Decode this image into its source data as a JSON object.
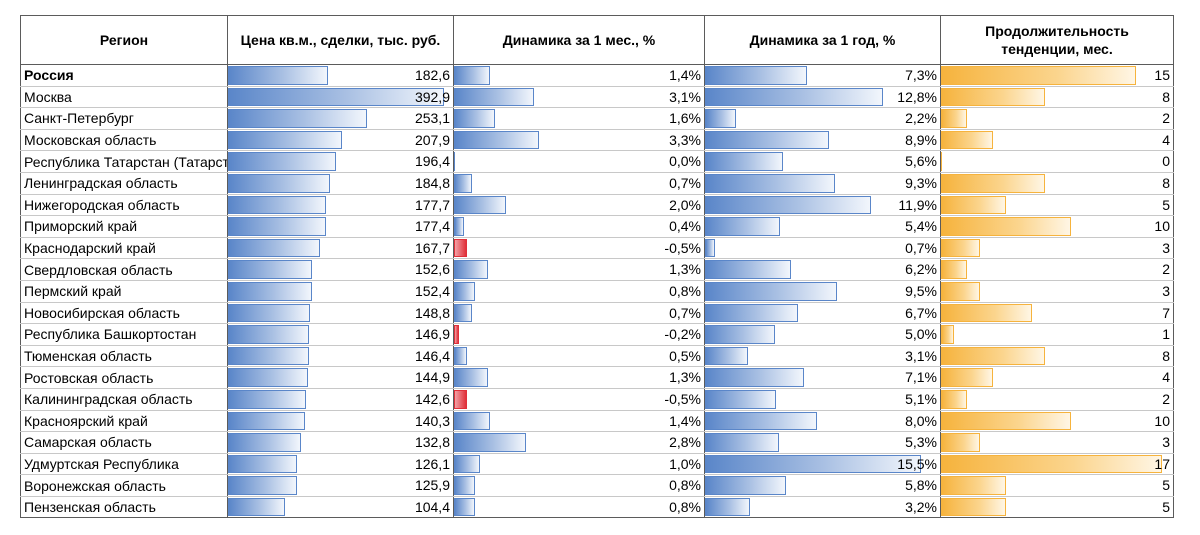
{
  "chart_data": {
    "type": "table",
    "columns": [
      "Регион",
      "Цена кв.м., сделки, тыс. руб.",
      "Динамика за 1 мес., %",
      "Динамика за 1 год, %",
      "Продолжительность тенденции, мес."
    ],
    "rows": [
      {
        "region": "Россия",
        "price": "182,6",
        "m1": "1,4%",
        "y1": "7,3%",
        "dur": "15",
        "bold": true
      },
      {
        "region": "Москва",
        "price": "392,9",
        "m1": "3,1%",
        "y1": "12,8%",
        "dur": "8"
      },
      {
        "region": "Санкт-Петербург",
        "price": "253,1",
        "m1": "1,6%",
        "y1": "2,2%",
        "dur": "2"
      },
      {
        "region": "Московская область",
        "price": "207,9",
        "m1": "3,3%",
        "y1": "8,9%",
        "dur": "4"
      },
      {
        "region": "Республика Татарстан (Татарстан)",
        "price": "196,4",
        "m1": "0,0%",
        "y1": "5,6%",
        "dur": "0"
      },
      {
        "region": "Ленинградская область",
        "price": "184,8",
        "m1": "0,7%",
        "y1": "9,3%",
        "dur": "8"
      },
      {
        "region": "Нижегородская область",
        "price": "177,7",
        "m1": "2,0%",
        "y1": "11,9%",
        "dur": "5"
      },
      {
        "region": "Приморский край",
        "price": "177,4",
        "m1": "0,4%",
        "y1": "5,4%",
        "dur": "10"
      },
      {
        "region": "Краснодарский край",
        "price": "167,7",
        "m1": "-0,5%",
        "y1": "0,7%",
        "dur": "3"
      },
      {
        "region": "Свердловская область",
        "price": "152,6",
        "m1": "1,3%",
        "y1": "6,2%",
        "dur": "2"
      },
      {
        "region": "Пермский край",
        "price": "152,4",
        "m1": "0,8%",
        "y1": "9,5%",
        "dur": "3"
      },
      {
        "region": "Новосибирская область",
        "price": "148,8",
        "m1": "0,7%",
        "y1": "6,7%",
        "dur": "7"
      },
      {
        "region": "Республика Башкортостан",
        "price": "146,9",
        "m1": "-0,2%",
        "y1": "5,0%",
        "dur": "1"
      },
      {
        "region": "Тюменская область",
        "price": "146,4",
        "m1": "0,5%",
        "y1": "3,1%",
        "dur": "8"
      },
      {
        "region": "Ростовская область",
        "price": "144,9",
        "m1": "1,3%",
        "y1": "7,1%",
        "dur": "4"
      },
      {
        "region": "Калининградская область",
        "price": "142,6",
        "m1": "-0,5%",
        "y1": "5,1%",
        "dur": "2"
      },
      {
        "region": "Красноярский край",
        "price": "140,3",
        "m1": "1,4%",
        "y1": "8,0%",
        "dur": "10"
      },
      {
        "region": "Самарская область",
        "price": "132,8",
        "m1": "2,8%",
        "y1": "5,3%",
        "dur": "3"
      },
      {
        "region": "Удмуртская Республика",
        "price": "126,1",
        "m1": "1,0%",
        "y1": "15,5%",
        "dur": "17"
      },
      {
        "region": "Воронежская область",
        "price": "125,9",
        "m1": "0,8%",
        "y1": "5,8%",
        "dur": "5"
      },
      {
        "region": "Пензенская область",
        "price": "104,4",
        "m1": "0,8%",
        "y1": "3,2%",
        "dur": "5"
      }
    ],
    "colors": {
      "price_bar": "#5a86c9",
      "m1_bar": "#5a86c9",
      "m1_negative_bar": "#e0303a",
      "y1_bar": "#5a86c9",
      "dur_bar": "#f6b33d"
    }
  }
}
